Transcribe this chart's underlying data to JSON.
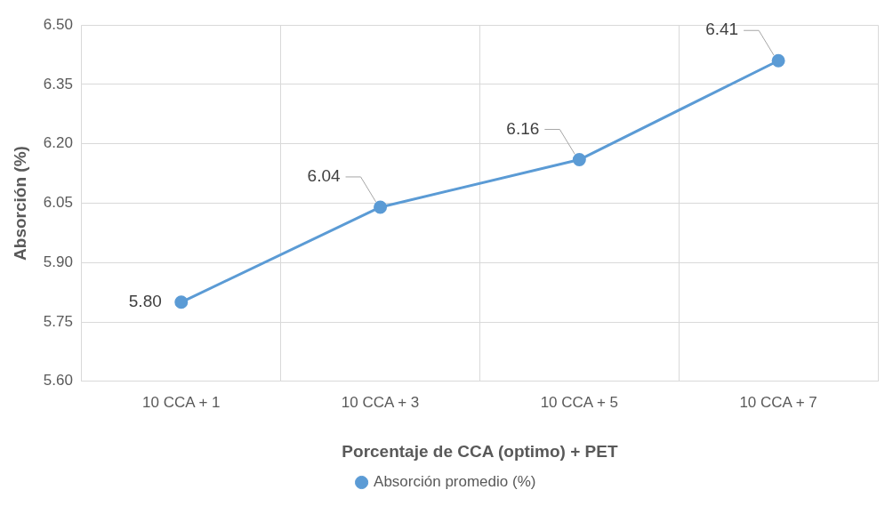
{
  "chart_data": {
    "type": "line",
    "xlabel": "Porcentaje de CCA (optimo) + PET",
    "ylabel": "Absorción (%)",
    "categories": [
      "10 CCA + 1",
      "10 CCA + 3",
      "10 CCA + 5",
      "10 CCA + 7"
    ],
    "series": [
      {
        "name": "Absorción promedio (%)",
        "color": "#5b9bd5",
        "values": [
          5.8,
          6.04,
          6.16,
          6.41
        ],
        "value_labels": [
          "5.80",
          "6.04",
          "6.16",
          "6.41"
        ]
      }
    ],
    "ylim": [
      5.6,
      6.5
    ],
    "yticks": [
      {
        "value": 5.6,
        "label": "5.60"
      },
      {
        "value": 5.75,
        "label": "5.75"
      },
      {
        "value": 5.9,
        "label": "5.90"
      },
      {
        "value": 6.05,
        "label": "6.05"
      },
      {
        "value": 6.2,
        "label": "6.20"
      },
      {
        "value": 6.35,
        "label": "6.35"
      },
      {
        "value": 6.5,
        "label": "6.50"
      }
    ],
    "grid": true,
    "legend": "bottom",
    "marker": "circle",
    "line_style": "solid"
  }
}
